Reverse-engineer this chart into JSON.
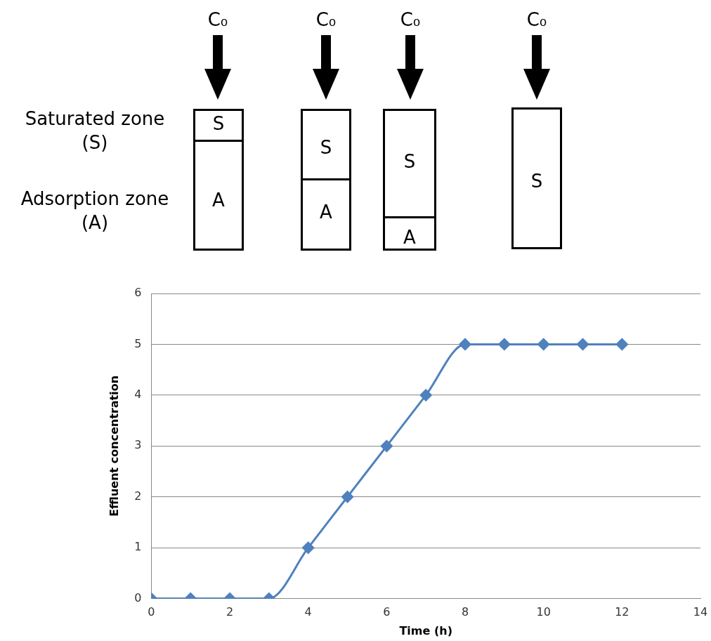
{
  "chart_data": {
    "type": "line",
    "xlabel": "Time (h)",
    "ylabel": "Effluent concentration",
    "x": [
      0,
      1,
      2,
      3,
      4,
      5,
      6,
      7,
      8,
      9,
      10,
      11,
      12
    ],
    "values": [
      0,
      0,
      0,
      0,
      1,
      2,
      3,
      4,
      5,
      5,
      5,
      5,
      5
    ],
    "color": "#4f81bd",
    "marker": "diamond",
    "line_style": "solid",
    "xlim": [
      0,
      14
    ],
    "xticks": [
      0,
      2,
      4,
      6,
      8,
      10,
      12,
      14
    ],
    "ylim": [
      0,
      6
    ],
    "yticks": [
      0,
      1,
      2,
      3,
      4,
      5,
      6
    ],
    "grid": "y",
    "annotations": [
      "C₀",
      "C₀",
      "C₀",
      "C₀",
      "Saturated zone\n(S)",
      "Adsorption zone\n(A)",
      "S",
      "A",
      "S",
      "A",
      "S",
      "A",
      "S"
    ]
  }
}
